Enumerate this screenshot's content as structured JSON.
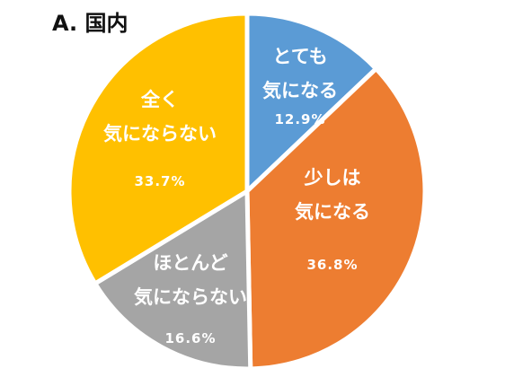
{
  "title": "A. 国内",
  "chart_data": {
    "type": "pie",
    "title": "A. 国内",
    "slices": [
      {
        "label": "とても気になる",
        "lines": [
          "とても",
          "気になる"
        ],
        "value": 12.9,
        "pct_label": "12.9%",
        "color": "#5B9BD5"
      },
      {
        "label": "少しは気になる",
        "lines": [
          "少しは",
          "気になる"
        ],
        "value": 36.8,
        "pct_label": "36.8%",
        "color": "#ED7D31"
      },
      {
        "label": "ほとんど気にならない",
        "lines": [
          "ほとんど",
          "気にならない"
        ],
        "value": 16.6,
        "pct_label": "16.6%",
        "color": "#A5A5A5"
      },
      {
        "label": "全く気にならない",
        "lines": [
          "全く",
          "気にならない"
        ],
        "value": 33.7,
        "pct_label": "33.7%",
        "color": "#FFC000"
      }
    ]
  }
}
